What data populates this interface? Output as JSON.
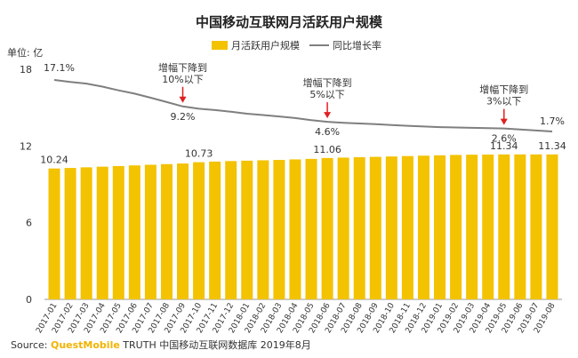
{
  "chart_data": {
    "type": "bar+line",
    "title": "中国移动互联网月活跃用户规模",
    "ylabel": "单位: 亿",
    "ylim": [
      0,
      18
    ],
    "yticks": [
      0,
      6,
      12,
      18
    ],
    "legend": {
      "placement": "top",
      "bar_label": "月活跃用户规模",
      "line_label": "同比增长率"
    },
    "categories": [
      "2017-01",
      "2017-02",
      "2017-03",
      "2017-04",
      "2017-05",
      "2017-06",
      "2017-07",
      "2017-08",
      "2017-09",
      "2017-10",
      "2017-11",
      "2017-12",
      "2018-01",
      "2018-02",
      "2018-03",
      "2018-04",
      "2018-05",
      "2018-06",
      "2018-07",
      "2018-08",
      "2018-09",
      "2018-10",
      "2018-11",
      "2018-12",
      "2019-01",
      "2019-02",
      "2019-03",
      "2019-04",
      "2019-05",
      "2019-06",
      "2019-07",
      "2019-08"
    ],
    "series": [
      {
        "name": "月活跃用户规模",
        "kind": "bar",
        "color": "#f3c200",
        "values": [
          10.24,
          10.28,
          10.33,
          10.38,
          10.43,
          10.48,
          10.53,
          10.58,
          10.63,
          10.73,
          10.78,
          10.82,
          10.85,
          10.88,
          10.91,
          10.95,
          10.99,
          11.06,
          11.09,
          11.12,
          11.15,
          11.18,
          11.21,
          11.24,
          11.27,
          11.3,
          11.32,
          11.33,
          11.34,
          11.34,
          11.34,
          11.34
        ],
        "labels": {
          "0": "10.24",
          "9": "10.73",
          "17": "11.06",
          "28": "11.34",
          "31": "11.34"
        }
      },
      {
        "name": "同比增长率",
        "kind": "line",
        "color": "#7f7f7f",
        "unit": "%",
        "values": [
          17.1,
          16.5,
          16.0,
          15.1,
          14.0,
          13.0,
          11.8,
          10.5,
          9.2,
          8.5,
          8.1,
          7.6,
          7.0,
          6.6,
          6.2,
          5.7,
          5.1,
          4.6,
          4.3,
          4.1,
          3.9,
          3.6,
          3.4,
          3.2,
          3.0,
          2.9,
          2.8,
          2.7,
          2.6,
          2.3,
          2.0,
          1.7
        ],
        "labels": {
          "0": "17.1%",
          "8": "9.2%",
          "17": "4.6%",
          "28": "2.6%",
          "31": "1.7%"
        }
      }
    ],
    "annotations": [
      {
        "index": 8,
        "line1": "增幅下降到",
        "line2": "10%以下"
      },
      {
        "index": 17,
        "line1": "增幅下降到",
        "line2": "5%以下"
      },
      {
        "index": 28,
        "line1": "增幅下降到",
        "line2": "3%以下"
      }
    ],
    "annotation_color": "#e02020",
    "grid": false
  },
  "source": {
    "prefix": "Source: ",
    "brand": "QuestMobile",
    "suffix": " TRUTH 中国移动互联网数据库 2019年8月"
  }
}
